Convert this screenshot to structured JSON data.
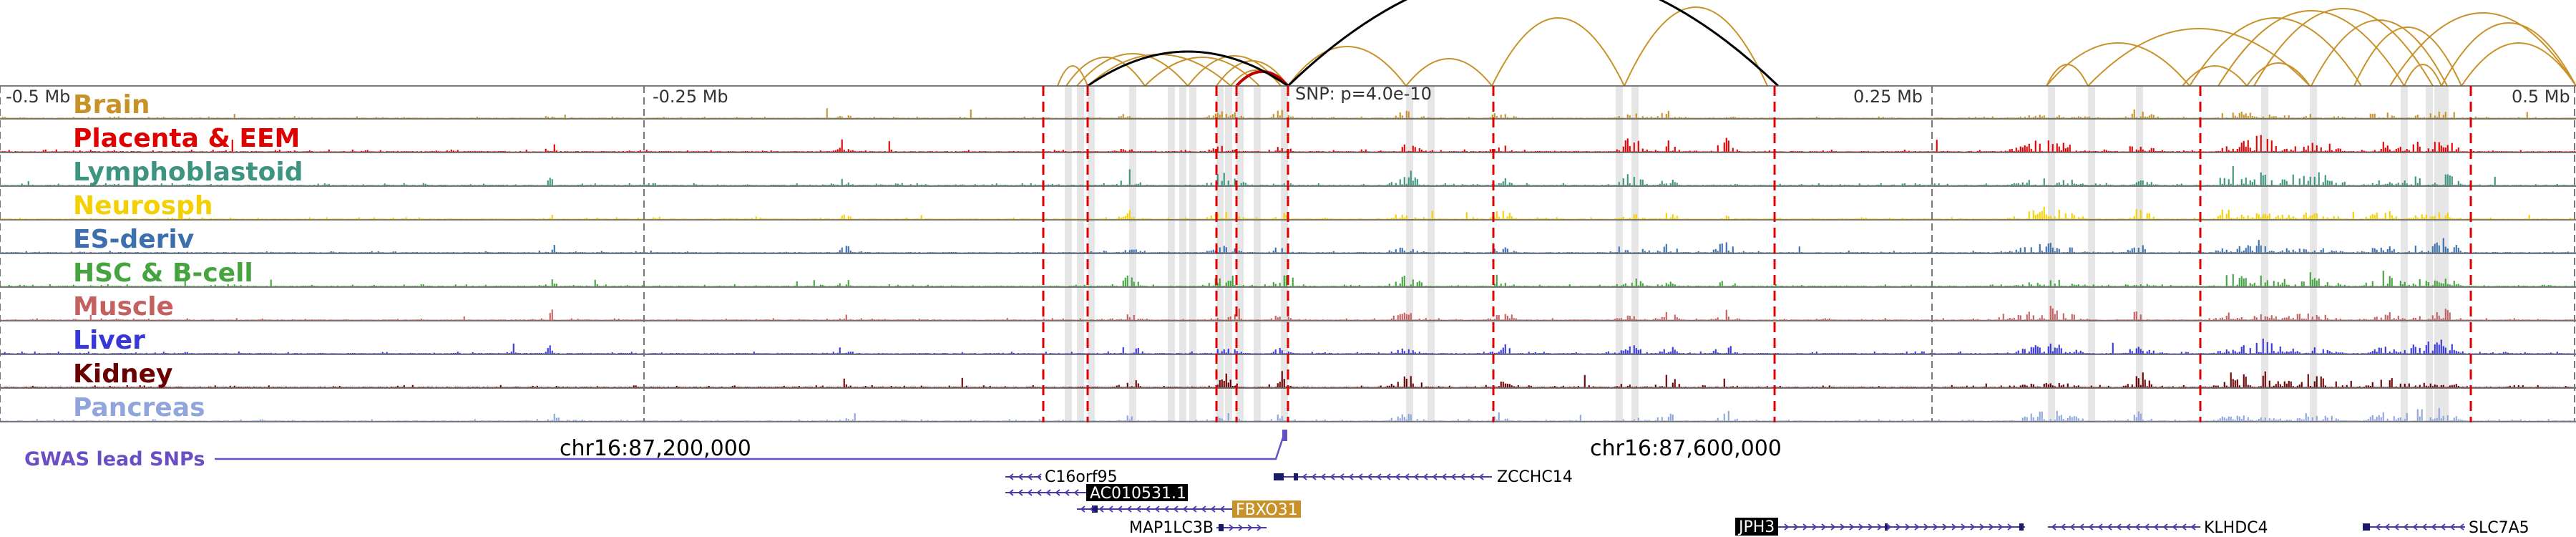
{
  "scale": {
    "left": "-0.5 Mb",
    "mid_left": "-0.25 Mb",
    "mid_right": "0.25 Mb",
    "right": "0.5 Mb"
  },
  "snp_label": "SNP: p=4.0e-10",
  "tracks": [
    {
      "label": "Brain",
      "color": "#c8922a",
      "seed": 11,
      "gain": 0.7
    },
    {
      "label": "Placenta & EEM",
      "color": "#e00000",
      "seed": 23,
      "gain": 1.0
    },
    {
      "label": "Lymphoblastoid",
      "color": "#3d9480",
      "seed": 37,
      "gain": 1.0
    },
    {
      "label": "Neurosph",
      "color": "#f4d000",
      "seed": 41,
      "gain": 0.8
    },
    {
      "label": "ES-deriv",
      "color": "#3c6fad",
      "seed": 53,
      "gain": 0.9
    },
    {
      "label": "HSC & B-cell",
      "color": "#45a340",
      "seed": 67,
      "gain": 0.9
    },
    {
      "label": "Muscle",
      "color": "#c46060",
      "seed": 79,
      "gain": 0.8
    },
    {
      "label": "Liver",
      "color": "#3838d8",
      "seed": 83,
      "gain": 1.0
    },
    {
      "label": "Kidney",
      "color": "#6b0000",
      "seed": 97,
      "gain": 1.0
    },
    {
      "label": "Pancreas",
      "color": "#8fa5dc",
      "seed": 101,
      "gain": 0.8
    }
  ],
  "gwas": {
    "label": "GWAS lead SNPs",
    "color": "#6a4fc4"
  },
  "coords": {
    "left": "chr16:87,200,000",
    "right": "chr16:87,600,000"
  },
  "genes": [
    {
      "name": "C16orf95",
      "boxed": false
    },
    {
      "name": "AC010531.1",
      "boxed": true,
      "box_color": "#000000"
    },
    {
      "name": "ZCCHC14",
      "boxed": false
    },
    {
      "name": "FBXO31",
      "boxed": true,
      "box_color": "#c8922a"
    },
    {
      "name": "MAP1LC3B",
      "boxed": false
    },
    {
      "name": "JPH3",
      "boxed": true,
      "box_color": "#000000"
    },
    {
      "name": "KLHDC4",
      "boxed": false
    },
    {
      "name": "SLC7A5",
      "boxed": false
    }
  ],
  "colors": {
    "arc_main": "#000000",
    "arc_tissue": "#c8922a",
    "arc_highlight": "#c00000",
    "boundary": "#e00000",
    "highlight_band": "#e6e6e6",
    "gene": "#4a3aa8"
  }
}
